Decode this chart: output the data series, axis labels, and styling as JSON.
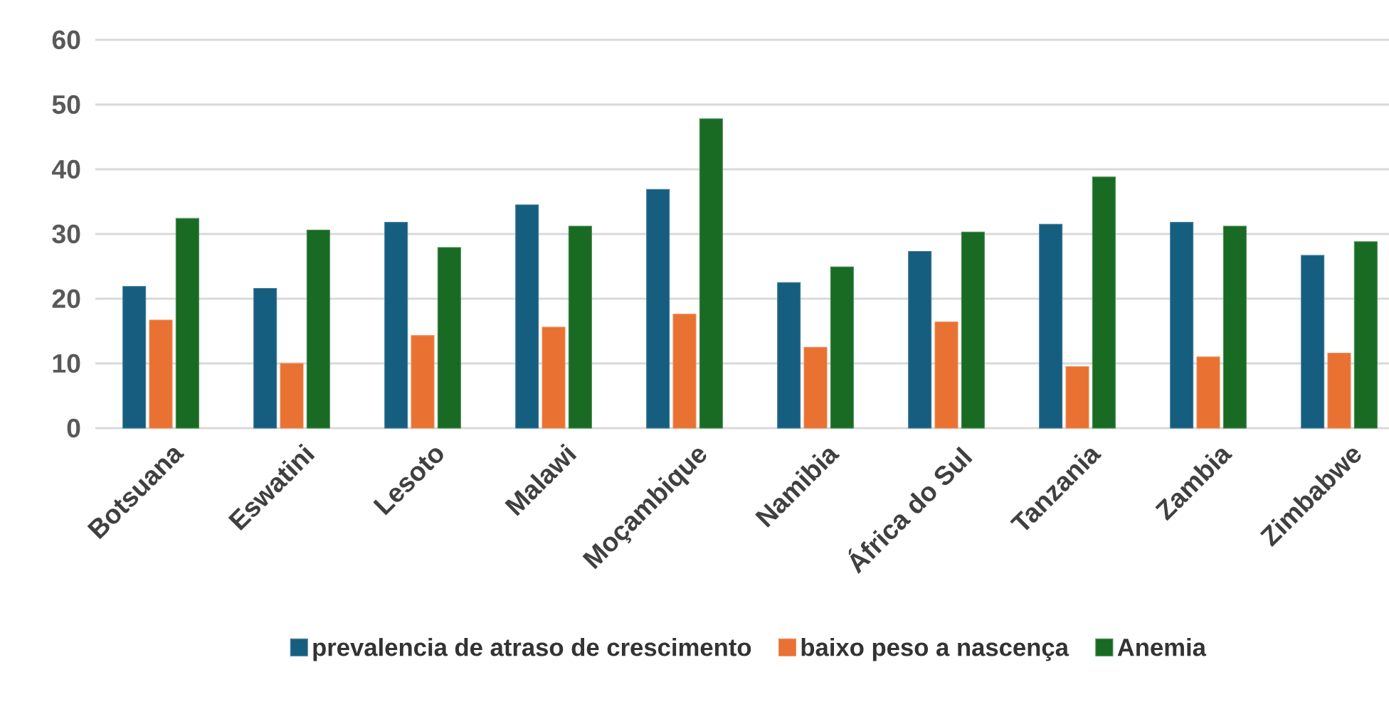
{
  "chart_data": {
    "type": "bar",
    "categories": [
      "Botsuana",
      "Eswatini",
      "Lesoto",
      "Malawi",
      "Moçambique",
      "Namibia",
      "África do Sul",
      "Tanzania",
      "Zambia",
      "Zimbabwe"
    ],
    "series": [
      {
        "name": "prevalencia de atraso de crescimento",
        "color": "#165e80",
        "values": [
          21.9,
          21.6,
          31.8,
          34.5,
          36.9,
          22.5,
          27.3,
          31.5,
          31.8,
          26.7
        ]
      },
      {
        "name": "baixo peso a nascença",
        "color": "#e97132",
        "values": [
          16.7,
          10.0,
          14.3,
          15.6,
          17.6,
          12.5,
          16.4,
          9.5,
          11.0,
          11.6
        ]
      },
      {
        "name": "Anemia",
        "color": "#196b24",
        "values": [
          32.4,
          30.6,
          27.9,
          31.2,
          47.8,
          24.9,
          30.3,
          38.8,
          31.2,
          28.8
        ]
      }
    ],
    "ylim": [
      0,
      60
    ],
    "yticks": [
      0,
      10,
      20,
      30,
      40,
      50,
      60
    ],
    "grid": "y",
    "legend": "bottom"
  }
}
